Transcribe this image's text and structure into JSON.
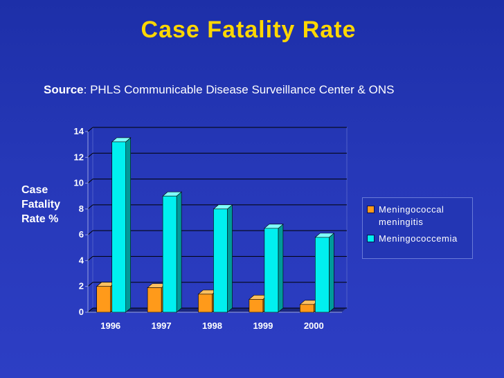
{
  "slide": {
    "title": "Case Fatality Rate",
    "source_label": "Source",
    "source_text": ": PHLS Communicable Disease Surveillance Center & ONS"
  },
  "colors": {
    "meningitis": "#ff9a1a",
    "meningococcemia": "#00f0f0"
  },
  "chart_data": {
    "type": "bar",
    "title": "Case Fatality Rate",
    "xlabel": "",
    "ylabel": "Case Fatality Rate %",
    "categories": [
      "1996",
      "1997",
      "1998",
      "1999",
      "2000"
    ],
    "series": [
      {
        "name": "Meningococcal meningitis",
        "values": [
          2.0,
          1.9,
          1.4,
          1.0,
          0.6
        ]
      },
      {
        "name": "Meningococcemia",
        "values": [
          13.2,
          9.0,
          8.0,
          6.5,
          5.8
        ]
      }
    ],
    "ylim": [
      0,
      14
    ],
    "yticks": [
      "0",
      "2",
      "4",
      "6",
      "8",
      "10",
      "12",
      "14"
    ],
    "grid": true,
    "legend_position": "right"
  }
}
